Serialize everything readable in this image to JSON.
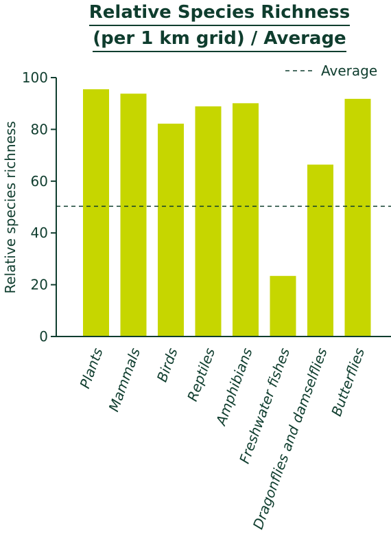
{
  "chart_data": {
    "type": "bar",
    "title_line1": "Relative Species Richness",
    "title_line2": "(per 1 km grid) / Average",
    "ylabel": "Relative species richness",
    "xlabel": "",
    "ylim": [
      0,
      100
    ],
    "yticks": [
      0,
      20,
      40,
      60,
      80,
      100
    ],
    "categories": [
      "Plants",
      "Mammals",
      "Birds",
      "Reptiles",
      "Amphibians",
      "Freshwater fishes",
      "Dragonflies and damselflies",
      "Butterflies"
    ],
    "values": [
      95.5,
      93.8,
      82.2,
      88.9,
      90.1,
      23.4,
      66.4,
      91.8
    ],
    "average": 50.3,
    "legend": {
      "label": "Average",
      "placement": "top-right"
    },
    "grid": false,
    "colors": {
      "bar": "#c6d600",
      "text": "#0f3d2e",
      "axis": "#0f3d2e",
      "average_line": "#0f3d2e"
    }
  }
}
